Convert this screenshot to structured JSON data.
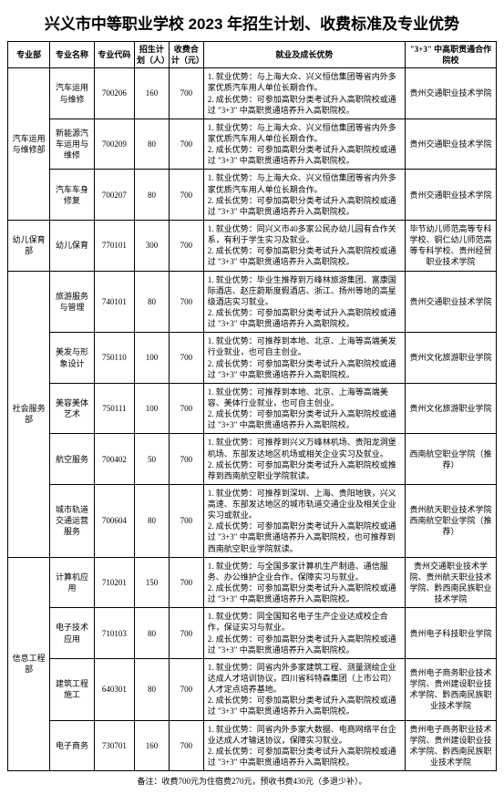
{
  "title": "兴义市中等职业学校 2023 年招生计划、收费标准及专业优势",
  "headers": {
    "dept": "专业部",
    "name": "专业名称",
    "code": "专业代码",
    "plan": "招生计划（人）",
    "fee": "收费合计（元）",
    "adv": "就业及成长优势",
    "school": "\"3+3\" 中高职贯通合作院校"
  },
  "depts": [
    {
      "dept": "汽车运用与维修部",
      "rows": [
        {
          "name": "汽车运用与维修",
          "code": "700206",
          "plan": "160",
          "fee": "700",
          "adv": "1. 就业优势：与上海大众、兴义恒信集团等省内外多家优质汽车用人单位长期合作。\n2. 成长优势：可参加高职分类考试升入高职院校或通过 \"3+3\" 中高职贯通培养升入高职院校。",
          "school": "贵州交通职业技术学院"
        },
        {
          "name": "新能源汽车运用与维修",
          "code": "700209",
          "plan": "80",
          "fee": "700",
          "adv": "1. 就业优势：与上海大众、兴义恒信集团等省内外多家优质汽车用人单位长期合作。\n2. 成长优势：可参加高职分类考试升入高职院校或通过 \"3+3\" 中高职贯通培养升入高职院校。",
          "school": "贵州交通职业技术学院"
        },
        {
          "name": "汽车车身修复",
          "code": "700207",
          "plan": "80",
          "fee": "700",
          "adv": "1. 就业优势：与上海大众、兴义恒信集团等省内外多家优质汽车用人单位长期合作。\n2. 成长优势：可参加高职分类考试升入高职院校或通过 \"3+3\" 中高职贯通培养升入高职院校。",
          "school": "贵州交通职业技术学院"
        }
      ]
    },
    {
      "dept": "幼儿保育部",
      "rows": [
        {
          "name": "幼儿保育",
          "code": "770101",
          "plan": "300",
          "fee": "700",
          "adv": "1. 就业优势：同兴义市40多家公民办幼儿园有合作关系，有利于学生实习及就业。\n2. 成长优势：可参加高职分类考试升入高职院校或通过 \"3+3\" 中高职贯通培养升入高职院校。",
          "school": "毕节幼儿师范高等专科学校、铜仁幼儿师范高等专科学校、贵州经贸职业技术学院"
        }
      ]
    },
    {
      "dept": "社会服务部",
      "rows": [
        {
          "name": "旅游服务与管理",
          "code": "740101",
          "plan": "80",
          "fee": "700",
          "adv": "1. 就业优势：毕业生推荐到万峰林旅游集团、富康国际酒店、赵庄蔚斯度假酒店、浙江、扬州等地的高星级酒店实习就业。\n2. 成长优势：可参加高职分类考试升入高职院校或通过 \"3+3\" 中高职贯通培养升入高职院校。",
          "school": "贵州交通职业技术学院"
        },
        {
          "name": "美发与形象设计",
          "code": "750110",
          "plan": "100",
          "fee": "700",
          "adv": "1. 就业优势：可推荐到本地、北京、上海等高端美发行业就业，也可自主创业。\n2. 成长优势：可参加高职分类考试升入高职院校或通过 \"3+3\" 中高职贯通培养升入高职院校。",
          "school": "贵州文化旅游职业学院"
        },
        {
          "name": "美容美体艺术",
          "code": "750111",
          "plan": "100",
          "fee": "700",
          "adv": "1. 就业优势：可推荐到本地、北京、上海等高端美容、美体行业就业，也可自主创业。\n2. 成长优势：可参加高职分类考试升入高职院校或通过 \"3+3\" 中高职贯通培养升入高职院校。",
          "school": "贵州文化旅游职业学院"
        },
        {
          "name": "航空服务",
          "code": "700402",
          "plan": "50",
          "fee": "700",
          "adv": "1. 就业优势：可推荐到兴义万峰林机场、贵阳龙洞堡机场、东部发达地区机场或相关企业实习及就业。\n2. 成长优势：可参加高职分类考试升入高职院校或推荐到西南航空职业学院就读。",
          "school": "西南航空职业学院（推荐）"
        },
        {
          "name": "城市轨道交通运营服务",
          "code": "700604",
          "plan": "80",
          "fee": "700",
          "adv": "1. 就业优势：可推荐到深圳、上海、贵阳地铁，兴义高速、东部发达地区的城市轨道交通企业及相关企业实习或就业。\n2. 成长优势：可参加高职分类考试升入高职院校或通过 \"3+3\" 中高职贯通培养升入高职院校，也可推荐到西南航空职业学院就读。",
          "school": "贵州航天职业技术学院 西南航空职业学院（推荐）"
        }
      ]
    },
    {
      "dept": "信息工程部",
      "rows": [
        {
          "name": "计算机应用",
          "code": "710201",
          "plan": "150",
          "fee": "700",
          "adv": "1. 就业优势：与全国多家计算机生产制造、通信服务、办公维护企业合作，保障实习与就业。\n2. 成长优势：可参加高职分类考试升入高职院校或通过 \"3+3\" 中高职贯通培养升入高职院校。",
          "school": "贵州交通职业技术学院、贵州航天职业技术学院、黔西南民族职业技术学院"
        },
        {
          "name": "电子技术应用",
          "code": "710103",
          "plan": "80",
          "fee": "700",
          "adv": "1. 就业优势：同全国知名电子生产企业达成校企合作，保证实习与就业。\n2. 成长优势：可参加高职分类考试升入高职院校或通过 \"3+3\" 中高职贯通培养升入高职院校。",
          "school": "贵州电子科技职业学院"
        },
        {
          "name": "建筑工程施工",
          "code": "640301",
          "plan": "80",
          "fee": "700",
          "adv": "1. 就业优势：同省内外多家建筑工程、测量测绘企业达成人才培训协议，四川省科特森集团（上市公司）人才定点培养基地。\n2. 成长优势：可参加高职分类考试升入高职院校或通过 \"3+3\" 中高职贯通培养升入高职院校。",
          "school": "贵州电子商务职业技术学院、贵州建设职业技术学院、黔西南民族职业技术学院"
        },
        {
          "name": "电子商务",
          "code": "730701",
          "plan": "160",
          "fee": "700",
          "adv": "1. 就业优势：同省内外多家大数据、电商网络平台企业达成人才输送协议，保障实习就业。\n2. 成长优势：可参加高职分类考试升入高职院校或通过 \"3+3\" 中高职贯通培养升入高职院校。",
          "school": "贵州电子商务职业技术学院、贵州建设职业技术学院、黔西南民族职业技术学院"
        }
      ]
    }
  ],
  "footnote": "备注：收费700元为住宿费270元，预收书费430元（多退少补）。"
}
